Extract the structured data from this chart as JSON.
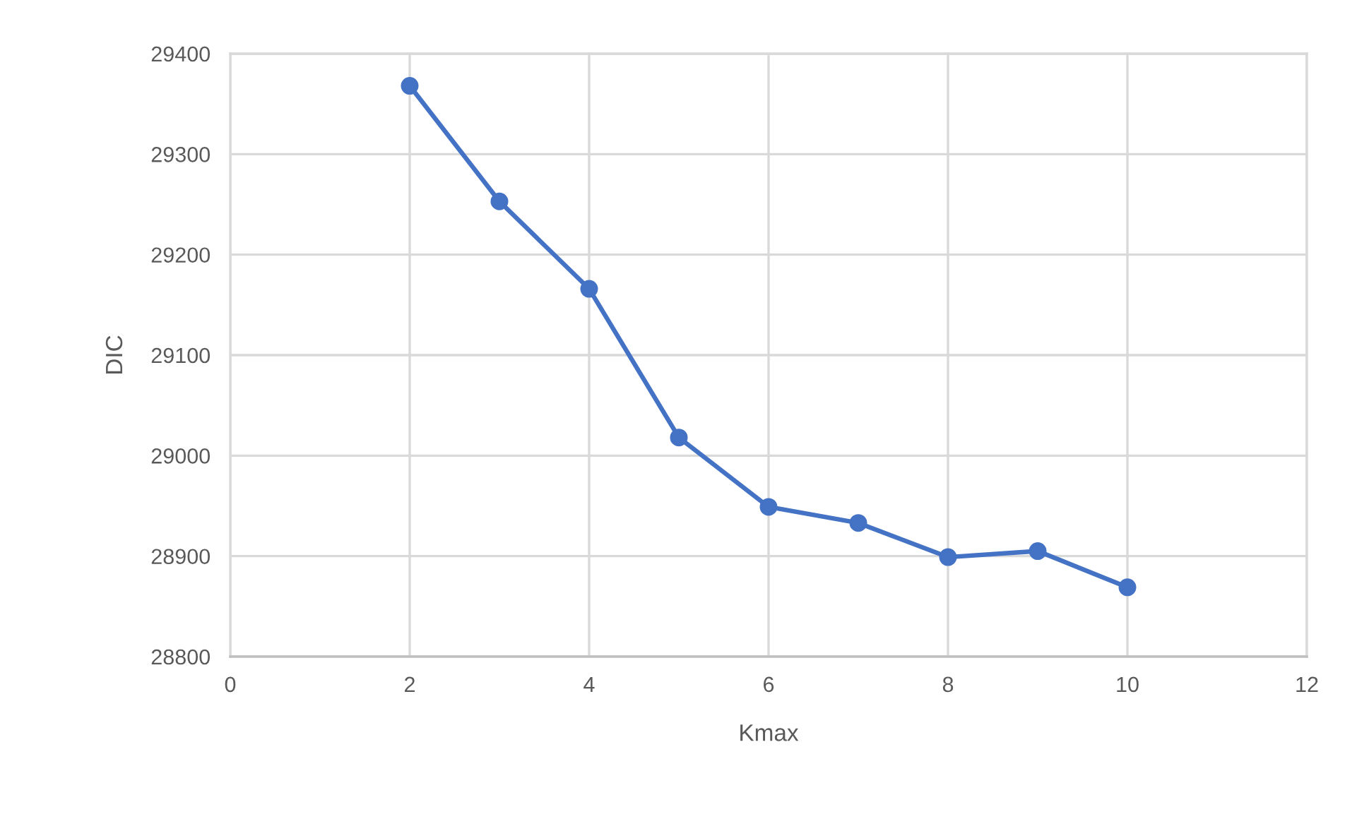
{
  "chart_data": {
    "type": "line",
    "xlabel": "Kmax",
    "ylabel": "DIC",
    "x": [
      2,
      3,
      4,
      5,
      6,
      7,
      8,
      9,
      10
    ],
    "series": [
      {
        "color": "#4472c4",
        "values": [
          29368,
          29253,
          29166,
          29018,
          28949,
          28933,
          28899,
          28905,
          28869
        ]
      }
    ],
    "xlim": [
      0,
      12
    ],
    "xticks": [
      0,
      2,
      4,
      6,
      8,
      10,
      12
    ],
    "ylim": [
      28800,
      29400
    ],
    "yticks": [
      28800,
      28900,
      29000,
      29100,
      29200,
      29300,
      29400
    ],
    "grid": true,
    "marker": "circle",
    "line_style": "solid"
  }
}
